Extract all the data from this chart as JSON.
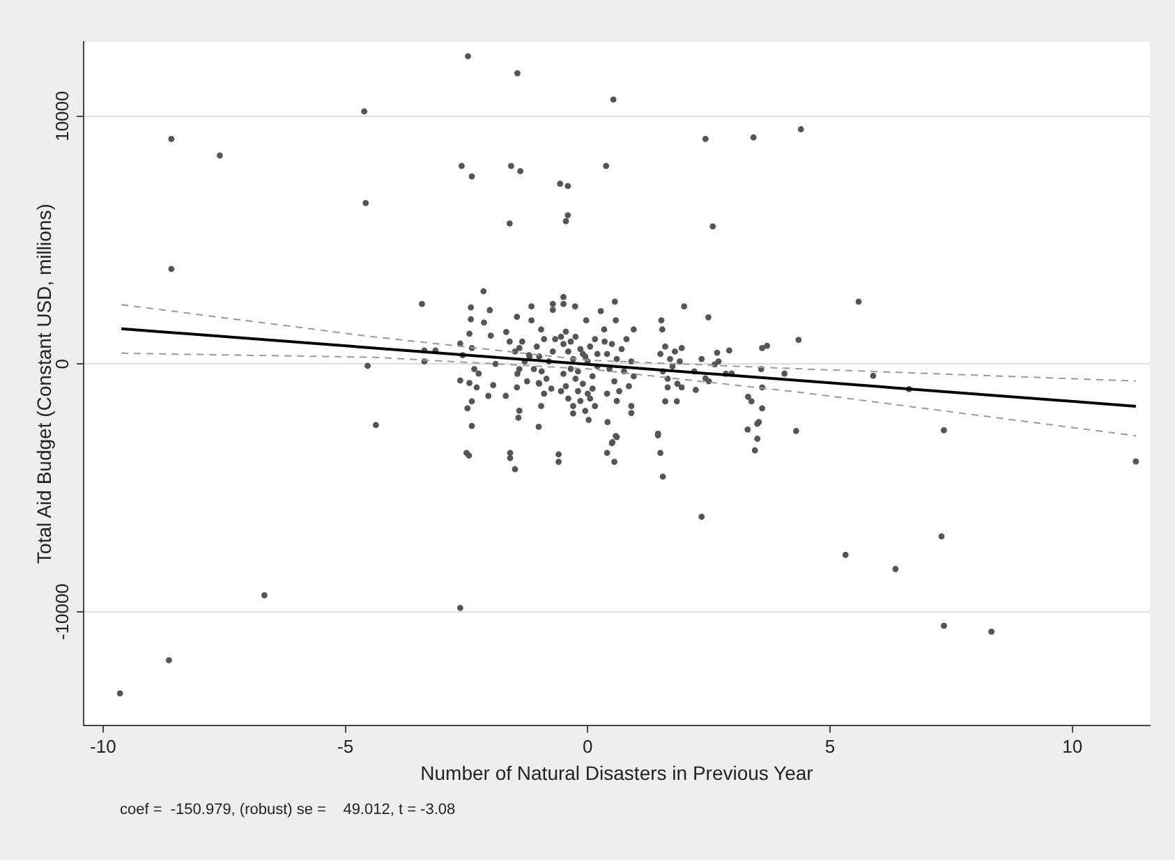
{
  "chart_data": {
    "type": "scatter",
    "xlabel": "Number of Natural Disasters in Previous Year",
    "ylabel": "Total Aid Budget (Constant USD, millions)",
    "annotations": [
      "coef =  -150.979, (robust) se =    49.012, t = -3.08"
    ],
    "xlim": [
      -10.4,
      11.6
    ],
    "ylim": [
      -14600,
      13000
    ],
    "xticks": [
      -10,
      -5,
      0,
      5,
      10
    ],
    "yticks": [
      -10000,
      0,
      10000
    ],
    "grid": "y",
    "series": [
      {
        "type": "scatter",
        "marker": "circle",
        "color": "#555555",
        "x": [
          -9.65,
          -8.64,
          -6.67,
          -2.63,
          2.35,
          5.32,
          6.35,
          7.3,
          7.35,
          8.33,
          11.31,
          7.35,
          4.3,
          -4.37,
          -2.5,
          -2.45,
          -1.6,
          -1.6,
          -1.5,
          -0.6,
          -0.6,
          0.4,
          0.5,
          0.6,
          0.55,
          1.45,
          1.5,
          1.55,
          3.3,
          3.45,
          3.5,
          3.5,
          -8.59,
          -8.59,
          -7.59,
          -4.61,
          -4.58,
          -2.47,
          -2.6,
          -2.39,
          -1.61,
          -1.58,
          -1.39,
          -1.45,
          -0.57,
          -0.41,
          -0.45,
          -0.41,
          0.38,
          0.53,
          2.43,
          2.58,
          3.42,
          4.4,
          5.59,
          -3.42,
          -2.15,
          -4.54,
          4.35,
          5.89,
          6.63,
          -3.37,
          -3.37,
          -3.14,
          -2.63,
          -2.58,
          -2.63,
          -2.44,
          -2.39,
          -2.48,
          -2.39,
          -2.41,
          -2.41,
          -2.44,
          -2.39,
          -2.34,
          -2.25,
          -2.29,
          -2.05,
          -1.95,
          -1.9,
          -2.0,
          -2.02,
          -2.14,
          -1.68,
          -1.69,
          -1.61,
          -1.46,
          -1.41,
          -1.41,
          -1.46,
          -1.41,
          -1.43,
          -1.16,
          -1.16,
          -1.21,
          -1.11,
          -1.01,
          -0.96,
          -0.96,
          -1.01,
          -0.72,
          -0.72,
          -0.67,
          -0.5,
          -0.5,
          -0.26,
          -0.03,
          0.02,
          0.27,
          0.56,
          0.58,
          0.34,
          0.95,
          0.9,
          0.9,
          0.41,
          0.58,
          0.51,
          1.52,
          1.54,
          1.99,
          1.94,
          2.49,
          1.45,
          1.65,
          1.6,
          1.84,
          1.94,
          2.23,
          2.43,
          2.62,
          2.67,
          2.92,
          2.97,
          3.31,
          3.38,
          3.6,
          3.58,
          3.6,
          3.7,
          4.06,
          3.6,
          3.53,
          -0.55,
          -0.5,
          -0.45,
          -0.4,
          -0.35,
          -0.3,
          -0.25,
          -0.2,
          -0.15,
          -0.1,
          -0.05,
          0,
          0.05,
          0.1,
          0.15,
          0.2,
          -0.5,
          -0.45,
          -0.4,
          -0.35,
          -0.3,
          -0.25,
          -0.2,
          -0.15,
          -0.1,
          -0.05,
          0,
          0.05,
          0.1,
          0.15,
          0.2,
          -0.55,
          -0.3,
          -1.05,
          -1.0,
          -0.95,
          -0.9,
          -0.85,
          -0.8,
          -0.75,
          -0.72,
          -0.9,
          -1.0,
          0.35,
          0.4,
          0.45,
          0.5,
          0.55,
          0.6,
          0.65,
          0.7,
          0.75,
          0.8,
          0.85,
          0.9,
          0.95,
          0.6,
          0.4,
          1.5,
          1.55,
          1.6,
          1.65,
          1.7,
          1.75,
          1.8,
          1.85,
          1.9,
          -1.5,
          -1.45,
          -1.35,
          -1.3,
          -1.25,
          -1.2,
          2.2,
          2.35,
          2.5,
          2.7,
          2.85
        ],
        "values": [
          -13300,
          -11960,
          -9340,
          -9850,
          -6170,
          -7710,
          -8280,
          -6960,
          -10570,
          -10810,
          -3940,
          -2680,
          -2710,
          -2470,
          -3590,
          -3700,
          -3590,
          -3800,
          -4250,
          -3650,
          -3950,
          -3590,
          -3200,
          -2950,
          -3950,
          -2880,
          -3590,
          -4550,
          -2650,
          -3490,
          -2420,
          -3020,
          9080,
          3830,
          8410,
          10190,
          6490,
          12420,
          7990,
          7570,
          5670,
          7990,
          7780,
          11730,
          7270,
          7180,
          5760,
          6000,
          7990,
          10670,
          9080,
          5550,
          9140,
          9470,
          2510,
          2420,
          2930,
          -80,
          970,
          -480,
          -1020,
          540,
          100,
          540,
          820,
          350,
          -670,
          -770,
          -1510,
          -1790,
          -2500,
          2280,
          1800,
          1220,
          640,
          -210,
          -390,
          -950,
          -1290,
          -860,
          0,
          1140,
          2170,
          1670,
          1290,
          -1290,
          900,
          1900,
          640,
          -210,
          -950,
          -1890,
          -2170,
          2320,
          1760,
          350,
          -210,
          -770,
          1390,
          -1700,
          -2540,
          2420,
          2180,
          1000,
          2700,
          2420,
          2320,
          1760,
          -2260,
          2130,
          2510,
          1760,
          1390,
          1390,
          -1700,
          -1980,
          -2350,
          -2910,
          -3160,
          1760,
          1390,
          2320,
          640,
          1880,
          -2820,
          -950,
          -1510,
          -1510,
          -950,
          -1050,
          -580,
          -20,
          450,
          540,
          -390,
          -1330,
          -1510,
          -950,
          -210,
          640,
          730,
          -390,
          -1790,
          -2350,
          1100,
          800,
          1300,
          500,
          900,
          200,
          1100,
          -300,
          600,
          -800,
          300,
          -1200,
          700,
          -500,
          1000,
          -100,
          -400,
          -900,
          -1400,
          -200,
          -1700,
          -600,
          -1100,
          -1500,
          400,
          -1900,
          100,
          -1400,
          -1000,
          -1700,
          400,
          -1100,
          -2000,
          700,
          300,
          -300,
          1000,
          -600,
          100,
          -1000,
          500,
          -1200,
          -800,
          900,
          400,
          -200,
          800,
          -700,
          200,
          -1100,
          600,
          -300,
          1000,
          -900,
          100,
          -500,
          -1500,
          -1200,
          400,
          -300,
          700,
          -600,
          200,
          -100,
          500,
          -800,
          100,
          500,
          -400,
          900,
          100,
          -700,
          300,
          -300,
          200,
          -700,
          100,
          -400
        ]
      },
      {
        "type": "line",
        "marker": "none",
        "color": "#000000",
        "line_style": "solid",
        "x": [
          -9.62,
          11.31
        ],
        "values": [
          1420,
          -1710
        ]
      },
      {
        "type": "line",
        "marker": "none",
        "color": "#999999",
        "line_style": "dashed",
        "x": [
          -9.62,
          -4.45,
          0,
          4.4,
          11.31
        ],
        "values": [
          2390,
          1100,
          150,
          -200,
          -690
        ]
      },
      {
        "type": "line",
        "marker": "none",
        "color": "#999999",
        "line_style": "dashed",
        "x": [
          -9.62,
          -4.45,
          0,
          4.4,
          11.31
        ],
        "values": [
          430,
          270,
          -200,
          -1150,
          -2900
        ]
      }
    ]
  }
}
